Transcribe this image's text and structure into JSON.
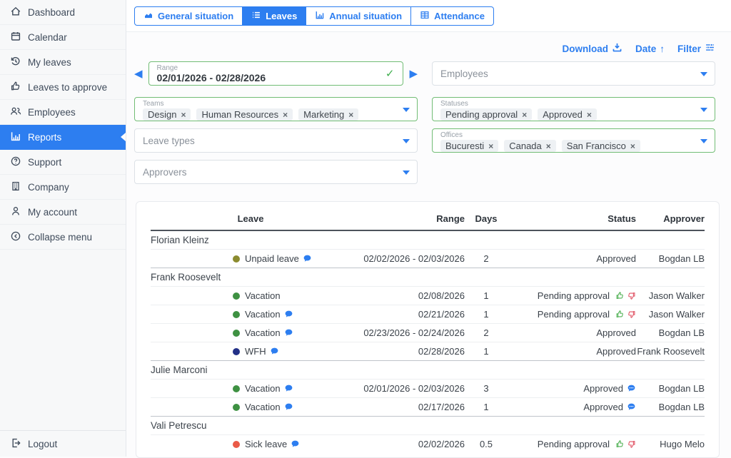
{
  "colors": {
    "accent": "#2d7ef0",
    "active_filter_border": "#72bd75",
    "check_green": "#3fae4d",
    "thumb_up": "#4caf50",
    "thumb_down": "#e05263",
    "dots": {
      "unpaid": "#8b8b2f",
      "vacation": "#3e9142",
      "wfh": "#233087",
      "sick": "#ea5a47"
    }
  },
  "sidebar": {
    "items": [
      {
        "label": "Dashboard",
        "icon": "home"
      },
      {
        "label": "Calendar",
        "icon": "calendar"
      },
      {
        "label": "My leaves",
        "icon": "history"
      },
      {
        "label": "Leaves to approve",
        "icon": "thumbs-up"
      },
      {
        "label": "Employees",
        "icon": "people"
      },
      {
        "label": "Reports",
        "icon": "bar-chart",
        "active": true
      },
      {
        "label": "Support",
        "icon": "question-circle"
      },
      {
        "label": "Company",
        "icon": "building"
      },
      {
        "label": "My account",
        "icon": "person"
      },
      {
        "label": "Collapse menu",
        "icon": "arrow-left-circle"
      }
    ],
    "logout_label": "Logout"
  },
  "tabs": [
    {
      "label": "General situation",
      "icon": "area-chart",
      "active": false
    },
    {
      "label": "Leaves",
      "icon": "list",
      "active": true
    },
    {
      "label": "Annual situation",
      "icon": "bar-chart",
      "active": false
    },
    {
      "label": "Attendance",
      "icon": "table",
      "active": false
    }
  ],
  "actions": {
    "download_label": "Download",
    "date_label": "Date",
    "date_arrow": "↑",
    "filter_label": "Filter"
  },
  "filters": {
    "range": {
      "label": "Range",
      "value": "02/01/2026 - 02/28/2026",
      "valid_check": "✓",
      "prev_arrow": "◀",
      "next_arrow": "▶"
    },
    "teams": {
      "label": "Teams",
      "chips": [
        "Design",
        "Human Resources",
        "Marketing"
      ]
    },
    "leave_types": {
      "placeholder": "Leave types"
    },
    "approvers": {
      "placeholder": "Approvers"
    },
    "employees": {
      "placeholder": "Employees"
    },
    "statuses": {
      "label": "Statuses",
      "chips": [
        "Pending approval",
        "Approved"
      ]
    },
    "offices": {
      "label": "Offices",
      "chips": [
        "Bucuresti",
        "Canada",
        "San Francisco"
      ]
    }
  },
  "table": {
    "headers": {
      "leave": "Leave",
      "range": "Range",
      "days": "Days",
      "status": "Status",
      "approver": "Approver"
    },
    "groups": [
      {
        "name": "Florian Kleinz",
        "rows": [
          {
            "leave": "Unpaid leave",
            "dot": "unpaid",
            "comment": true,
            "range": "02/02/2026 - 02/03/2026",
            "days": "2",
            "status": "Approved",
            "status_icons": "none",
            "approver": "Bogdan LB"
          }
        ]
      },
      {
        "name": "Frank Roosevelt",
        "rows": [
          {
            "leave": "Vacation",
            "dot": "vacation",
            "comment": false,
            "range": "02/08/2026",
            "days": "1",
            "status": "Pending approval",
            "status_icons": "thumbs",
            "approver": "Jason Walker"
          },
          {
            "leave": "Vacation",
            "dot": "vacation",
            "comment": true,
            "range": "02/21/2026",
            "days": "1",
            "status": "Pending approval",
            "status_icons": "thumbs",
            "approver": "Jason Walker"
          },
          {
            "leave": "Vacation",
            "dot": "vacation",
            "comment": true,
            "range": "02/23/2026 - 02/24/2026",
            "days": "2",
            "status": "Approved",
            "status_icons": "none",
            "approver": "Bogdan LB"
          },
          {
            "leave": "WFH",
            "dot": "wfh",
            "comment": true,
            "range": "02/28/2026",
            "days": "1",
            "status": "Approved",
            "status_icons": "none",
            "approver": "Frank Roosevelt"
          }
        ]
      },
      {
        "name": "Julie Marconi",
        "rows": [
          {
            "leave": "Vacation",
            "dot": "vacation",
            "comment": true,
            "range": "02/01/2026 - 02/03/2026",
            "days": "3",
            "status": "Approved",
            "status_icons": "bubble",
            "approver": "Bogdan LB"
          },
          {
            "leave": "Vacation",
            "dot": "vacation",
            "comment": true,
            "range": "02/17/2026",
            "days": "1",
            "status": "Approved",
            "status_icons": "bubble",
            "approver": "Bogdan LB"
          }
        ]
      },
      {
        "name": "Vali Petrescu",
        "rows": [
          {
            "leave": "Sick leave",
            "dot": "sick",
            "comment": true,
            "range": "02/02/2026",
            "days": "0.5",
            "status": "Pending approval",
            "status_icons": "thumbs",
            "approver": "Hugo Melo"
          }
        ]
      }
    ]
  }
}
